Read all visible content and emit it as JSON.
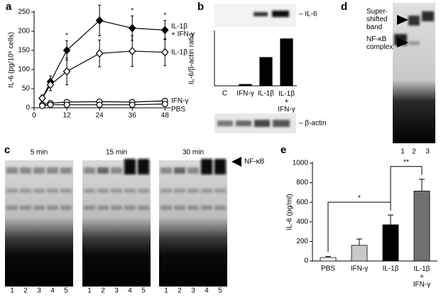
{
  "figure": {
    "panel_labels": [
      "a",
      "b",
      "c",
      "d",
      "e"
    ],
    "blot_b": {
      "top_label": "– IL-6",
      "bottom_label": "– β-actin"
    },
    "gel_c": {
      "times": [
        "5 min",
        "15 min",
        "30 min"
      ],
      "lanes": [
        "1",
        "2",
        "3",
        "4",
        "5"
      ],
      "band_label": "NF-κB"
    },
    "gel_d": {
      "lanes": [
        "1",
        "2",
        "3"
      ],
      "labels": [
        "Super-\nshifted\nband",
        "NF-κB\ncomplex"
      ]
    }
  },
  "chart_data": [
    {
      "type": "line",
      "ylabel": "IL-6 (pg/10⁶ cells)",
      "x": [
        3,
        6,
        12,
        24,
        36,
        48
      ],
      "xlim": [
        0,
        50
      ],
      "xticks": [
        0,
        12,
        24,
        36,
        48
      ],
      "ylim": [
        0,
        250
      ],
      "yticks": [
        0,
        50,
        100,
        150,
        200,
        250
      ],
      "series": [
        {
          "name": "IL-1β\n+ IFN-γ",
          "color": "#000000",
          "fill": "#000000",
          "marker": "diamond",
          "values": [
            25,
            68,
            150,
            228,
            208,
            203
          ],
          "errors": [
            8,
            15,
            25,
            40,
            32,
            25
          ]
        },
        {
          "name": "IL-1β",
          "color": "#000000",
          "fill": "#ffffff",
          "marker": "diamond",
          "values": [
            25,
            60,
            95,
            142,
            148,
            145
          ],
          "errors": [
            8,
            15,
            35,
            35,
            40,
            35
          ]
        },
        {
          "name": "IFN-γ",
          "color": "#000000",
          "fill": "#ffffff",
          "marker": "circle",
          "values": [
            8,
            12,
            15,
            16,
            15,
            18
          ],
          "errors": [
            3,
            4,
            5,
            5,
            5,
            5
          ]
        },
        {
          "name": "PBS",
          "color": "#000000",
          "fill": "#ffffff",
          "marker": "circle",
          "values": [
            5,
            8,
            8,
            8,
            8,
            10
          ],
          "errors": [
            2,
            3,
            3,
            3,
            3,
            3
          ]
        }
      ],
      "annotations": [
        {
          "text": "*",
          "x": 12
        },
        {
          "text": "*",
          "x": 24
        },
        {
          "text": "*",
          "x": 36
        },
        {
          "text": "*",
          "x": 48
        }
      ]
    },
    {
      "type": "bar",
      "ylabel": "IL-6/β-actin ratio",
      "categories": [
        "C",
        "IFN-γ",
        "IL-1β",
        "IL-1β\n+\nIFN-γ"
      ],
      "values": [
        0,
        0.15,
        2.9,
        4.8
      ],
      "colors": [
        "#000000",
        "#000000",
        "#000000",
        "#000000"
      ],
      "ylim": [
        0,
        5.5
      ]
    },
    {
      "type": "bar",
      "ylabel": "IL-6 (pg/ml)",
      "categories": [
        "PBS",
        "IFN-γ",
        "IL-1β",
        "IL-1β\n+\nIFN-γ"
      ],
      "values": [
        35,
        160,
        370,
        715
      ],
      "errors": [
        12,
        65,
        100,
        120
      ],
      "colors": [
        "#ffffff",
        "#c8c8c8",
        "#000000",
        "#707070"
      ],
      "ylim": [
        0,
        1000
      ],
      "yticks": [
        0,
        200,
        400,
        600,
        800,
        1000
      ],
      "comparisons": [
        {
          "from": 0,
          "to": 2,
          "label": "*"
        },
        {
          "from": 2,
          "to": 3,
          "label": "**"
        }
      ]
    }
  ]
}
